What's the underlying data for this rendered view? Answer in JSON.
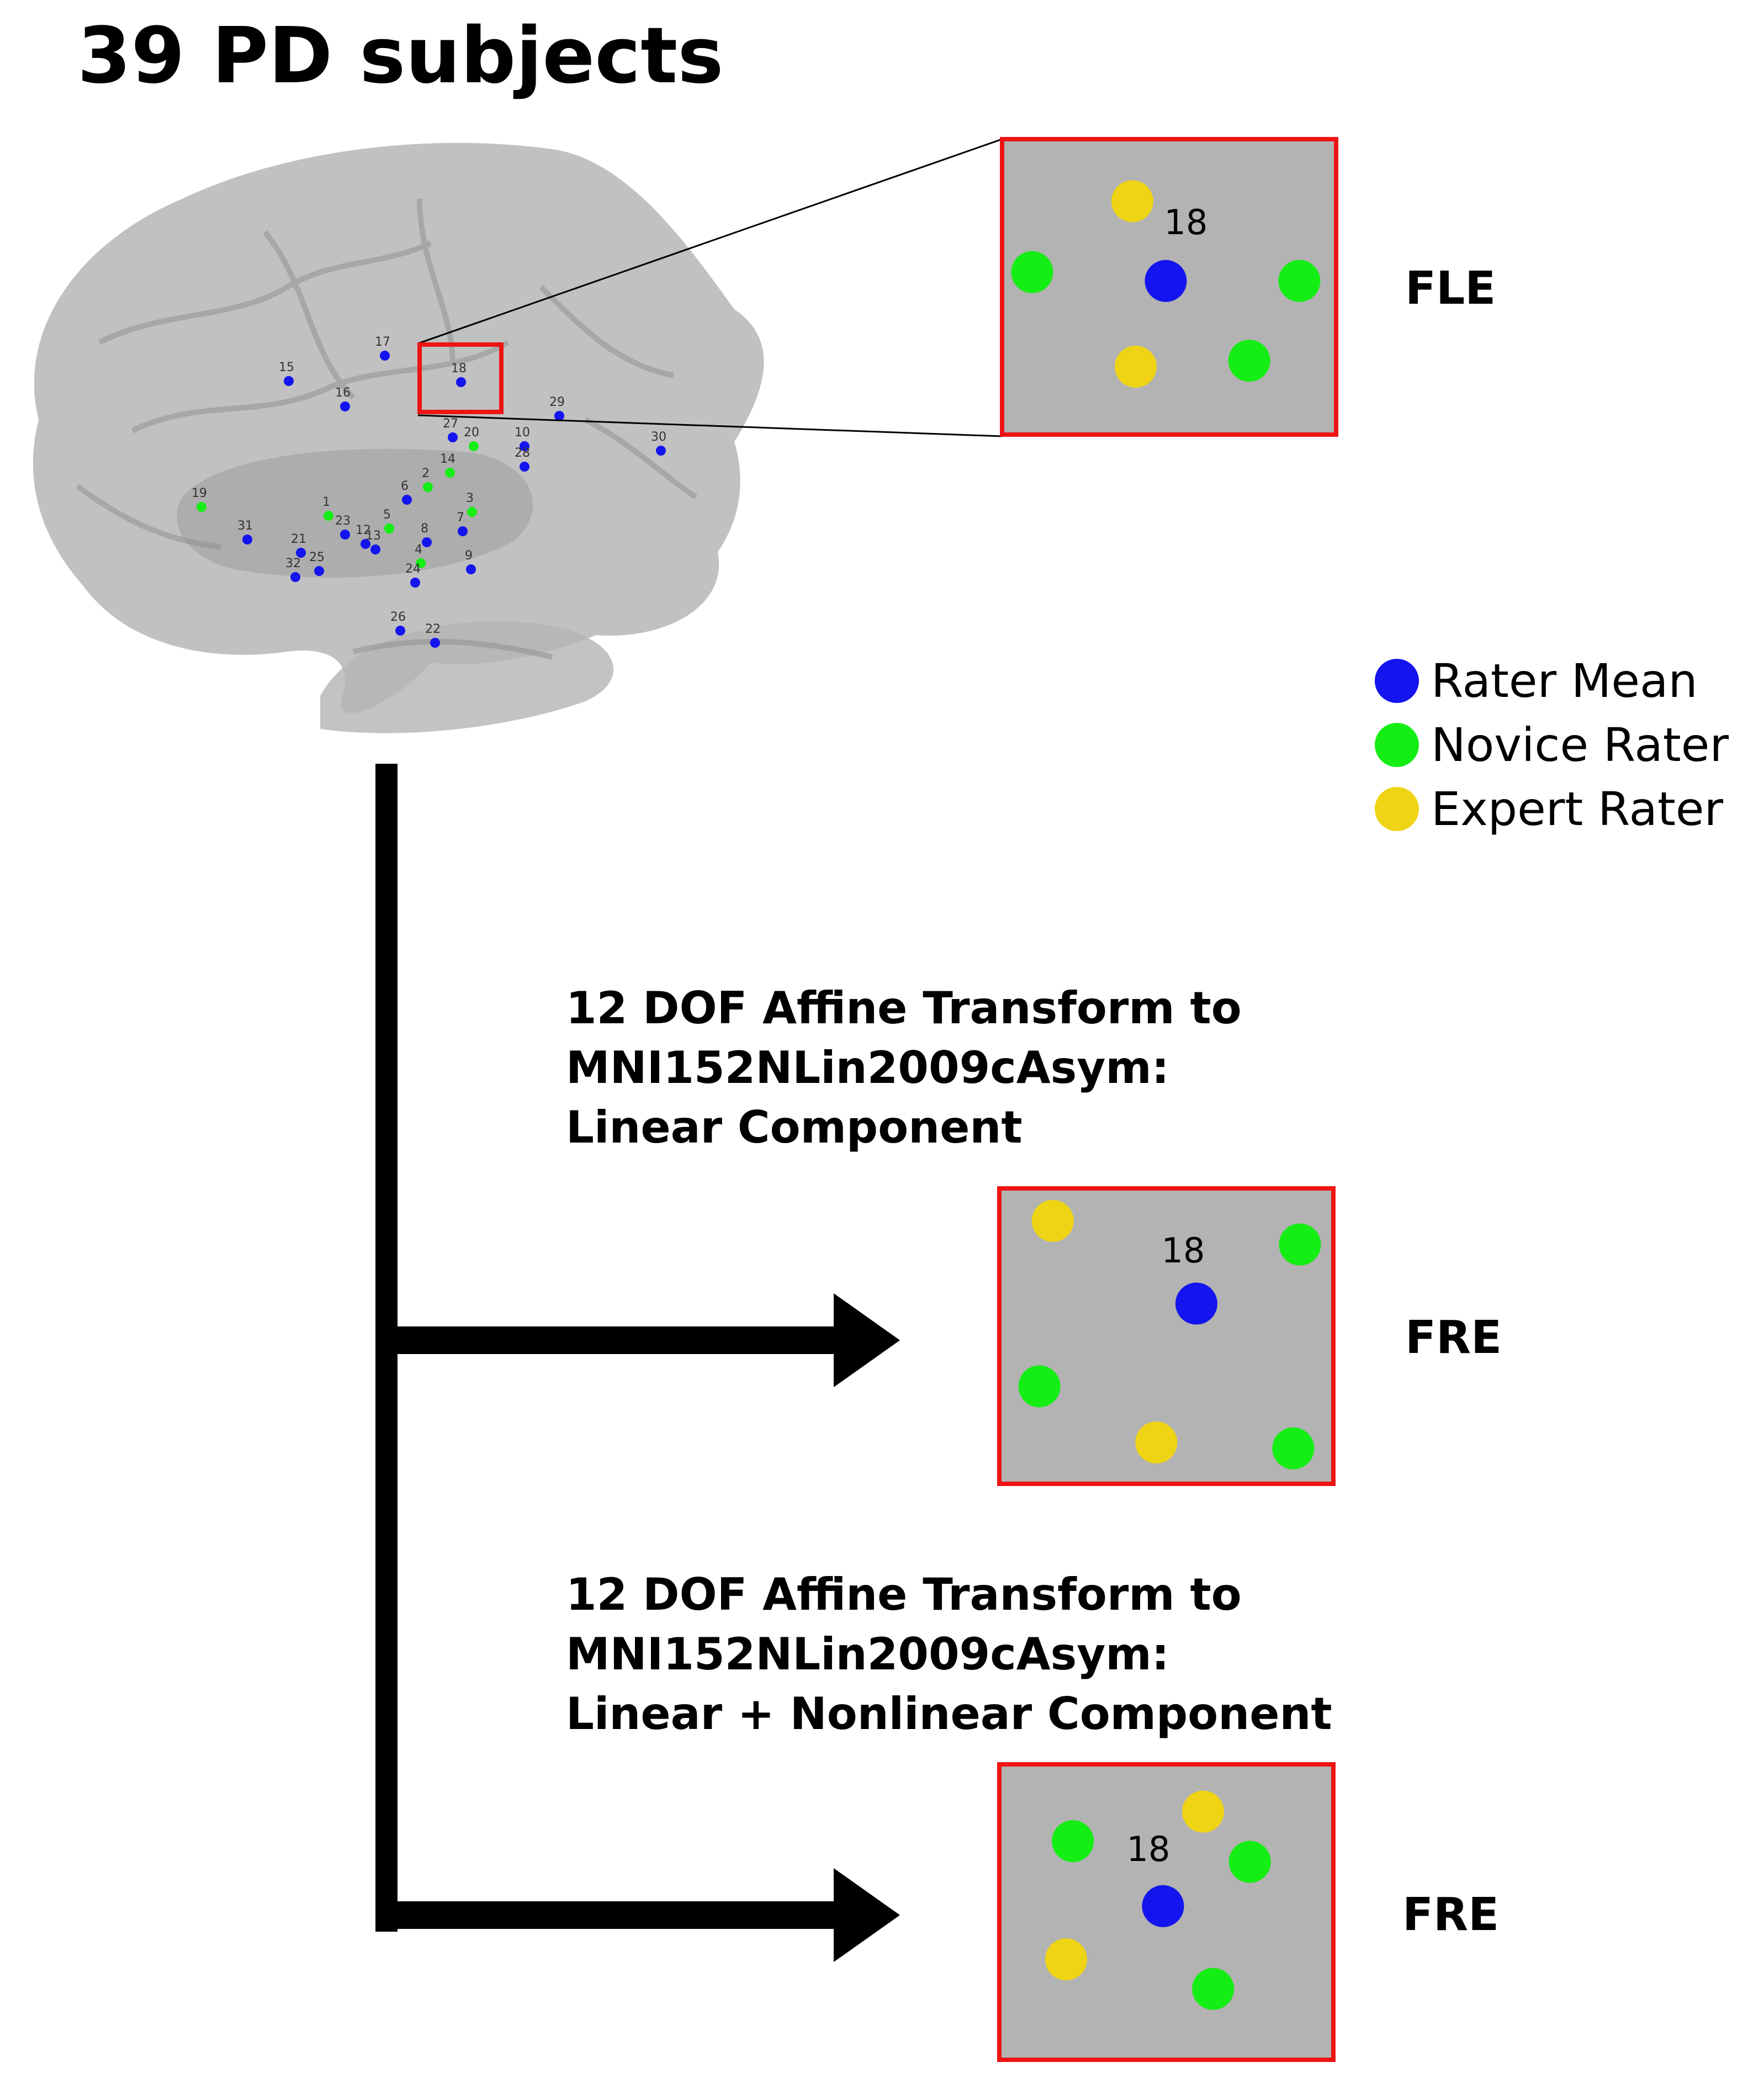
{
  "title": "39 PD subjects",
  "colors": {
    "rater_mean": "#1414ee",
    "novice_rater": "#14ee14",
    "expert_rater": "#eed414",
    "box_border": "#ee1414",
    "box_fill": "#b3b3b3",
    "brain": "#9e9e9e",
    "arrow": "#000000"
  },
  "legend": [
    {
      "label": "Rater Mean",
      "color": "#1414ee"
    },
    {
      "label": "Novice Rater",
      "color": "#14ee14"
    },
    {
      "label": "Expert Rater",
      "color": "#eed414"
    }
  ],
  "brain_markers": [
    {
      "label": "15",
      "rater": "mean"
    },
    {
      "label": "17",
      "rater": "mean"
    },
    {
      "label": "16",
      "rater": "mean"
    },
    {
      "label": "18",
      "rater": "mean"
    },
    {
      "label": "29",
      "rater": "mean"
    },
    {
      "label": "27",
      "rater": "mean"
    },
    {
      "label": "20",
      "rater": "novice"
    },
    {
      "label": "10",
      "rater": "mean"
    },
    {
      "label": "28",
      "rater": "mean"
    },
    {
      "label": "30",
      "rater": "mean"
    },
    {
      "label": "14",
      "rater": "novice"
    },
    {
      "label": "2",
      "rater": "novice"
    },
    {
      "label": "6",
      "rater": "mean"
    },
    {
      "label": "19",
      "rater": "novice"
    },
    {
      "label": "1",
      "rater": "novice"
    },
    {
      "label": "5",
      "rater": "novice"
    },
    {
      "label": "3",
      "rater": "novice"
    },
    {
      "label": "7",
      "rater": "mean"
    },
    {
      "label": "23",
      "rater": "mean"
    },
    {
      "label": "31",
      "rater": "mean"
    },
    {
      "label": "12",
      "rater": "mean"
    },
    {
      "label": "13",
      "rater": "mean"
    },
    {
      "label": "8",
      "rater": "mean"
    },
    {
      "label": "4",
      "rater": "novice"
    },
    {
      "label": "21",
      "rater": "mean"
    },
    {
      "label": "25",
      "rater": "mean"
    },
    {
      "label": "32",
      "rater": "mean"
    },
    {
      "label": "24",
      "rater": "mean"
    },
    {
      "label": "9",
      "rater": "mean"
    },
    {
      "label": "26",
      "rater": "mean"
    },
    {
      "label": "22",
      "rater": "mean"
    }
  ],
  "panels": [
    {
      "label": "FLE",
      "target": "18",
      "points": [
        {
          "rater": "expert",
          "x": 0.39,
          "y": 0.21
        },
        {
          "rater": "novice",
          "x": 0.09,
          "y": 0.45
        },
        {
          "rater": "mean",
          "x": 0.49,
          "y": 0.48
        },
        {
          "rater": "novice",
          "x": 0.89,
          "y": 0.48
        },
        {
          "rater": "expert",
          "x": 0.4,
          "y": 0.77
        },
        {
          "rater": "novice",
          "x": 0.74,
          "y": 0.75
        }
      ]
    },
    {
      "label": "FRE",
      "step": [
        "12 DOF Affine Transform to",
        "MNI152NLin2009cAsym:",
        "Linear Component"
      ],
      "target": "18",
      "points": [
        {
          "rater": "expert",
          "x": 0.16,
          "y": 0.11
        },
        {
          "rater": "novice",
          "x": 0.9,
          "y": 0.19
        },
        {
          "rater": "mean",
          "x": 0.59,
          "y": 0.39
        },
        {
          "rater": "novice",
          "x": 0.12,
          "y": 0.67
        },
        {
          "rater": "expert",
          "x": 0.47,
          "y": 0.86
        },
        {
          "rater": "novice",
          "x": 0.88,
          "y": 0.88
        }
      ]
    },
    {
      "label": "FRE",
      "step": [
        "12 DOF Affine Transform to",
        "MNI152NLin2009cAsym:",
        "Linear + Nonlinear Component"
      ],
      "target": "18",
      "points": [
        {
          "rater": "expert",
          "x": 0.61,
          "y": 0.16
        },
        {
          "rater": "novice",
          "x": 0.22,
          "y": 0.26
        },
        {
          "rater": "novice",
          "x": 0.75,
          "y": 0.33
        },
        {
          "rater": "mean",
          "x": 0.49,
          "y": 0.48
        },
        {
          "rater": "expert",
          "x": 0.2,
          "y": 0.66
        },
        {
          "rater": "novice",
          "x": 0.64,
          "y": 0.76
        }
      ]
    }
  ]
}
